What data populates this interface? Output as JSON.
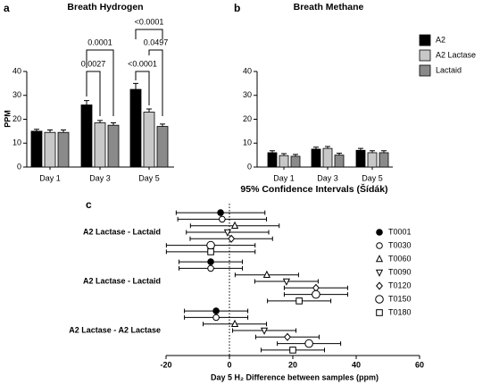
{
  "chart_data": [
    {
      "type": "bar",
      "panel": "a",
      "title": "Breath Hydrogen",
      "y_label": "PPM",
      "categories": [
        "Day 1",
        "Day 3",
        "Day 5"
      ],
      "series": [
        {
          "name": "A2",
          "color": "#000000",
          "values": [
            15,
            26,
            32.5
          ],
          "errors": [
            0.8,
            1.8,
            2.5
          ]
        },
        {
          "name": "A2 Lactase",
          "color": "#c8c8c8",
          "values": [
            14.5,
            18.5,
            23
          ],
          "errors": [
            1,
            1,
            1.3
          ]
        },
        {
          "name": "Lactaid",
          "color": "#8a8a8a",
          "values": [
            14.5,
            17.5,
            17
          ],
          "errors": [
            1,
            1,
            1
          ]
        }
      ],
      "annotations": [
        "0.0027",
        "0.0001",
        "<0.0001",
        "<0.0001",
        "0.0497"
      ],
      "ylim": [
        0,
        40
      ],
      "yticks": [
        0,
        10,
        20,
        30,
        40
      ],
      "legend": "right"
    },
    {
      "type": "bar",
      "panel": "b",
      "title": "Breath Methane",
      "categories": [
        "Day 1",
        "Day 3",
        "Day 5"
      ],
      "series": [
        {
          "color": "#000000",
          "values": [
            6,
            7.5,
            7
          ],
          "errors": [
            0.8,
            0.8,
            0.8
          ]
        },
        {
          "color": "#c8c8c8",
          "values": [
            4.8,
            7.8,
            6
          ],
          "errors": [
            0.8,
            0.8,
            0.8
          ]
        },
        {
          "color": "#8a8a8a",
          "values": [
            4.5,
            5,
            6
          ],
          "errors": [
            0.8,
            0.8,
            0.8
          ]
        }
      ],
      "ylim": [
        0,
        40
      ],
      "yticks": [
        0,
        10,
        20,
        30,
        40
      ]
    },
    {
      "type": "forest",
      "panel": "c",
      "title": "95% Confidence Intervals (Šídák)",
      "x_label": "Day 5 H₂ Difference between samples (ppm)",
      "categories": [
        "A2 Lactase - Lactaid",
        "A2 Lactase - Lactaid",
        "A2 Lactase - A2 Lactase"
      ],
      "series": [
        {
          "name": "T0001",
          "marker": "circle-filled",
          "values": [
            -2.8,
            -5.9,
            -4.2
          ],
          "lower": [
            -16.8,
            -15.9,
            -14.2
          ],
          "upper": [
            11.2,
            4.1,
            5.8
          ]
        },
        {
          "name": "T0030",
          "marker": "circle",
          "values": [
            -2.3,
            -5.9,
            -4.2
          ],
          "lower": [
            -16.3,
            -15.9,
            -14.2
          ],
          "upper": [
            11.7,
            4.1,
            5.8
          ]
        },
        {
          "name": "T0060",
          "marker": "triangle",
          "values": [
            1.7,
            11.8,
            1.7
          ],
          "lower": [
            -12.3,
            1.8,
            -8.3
          ],
          "upper": [
            15.7,
            21.8,
            11.7
          ]
        },
        {
          "name": "T0090",
          "marker": "triangle-down",
          "values": [
            -0.6,
            18,
            11
          ],
          "lower": [
            -13.6,
            8,
            1
          ],
          "upper": [
            12.4,
            28,
            21
          ]
        },
        {
          "name": "T0120",
          "marker": "diamond",
          "values": [
            0.6,
            27.3,
            18.3
          ],
          "lower": [
            -12.4,
            17.3,
            8.3
          ],
          "upper": [
            13.6,
            37.3,
            28.3
          ]
        },
        {
          "name": "T0150",
          "marker": "circle-large",
          "values": [
            -5.9,
            27.3,
            25.1
          ],
          "lower": [
            -19.9,
            17.3,
            15.1
          ],
          "upper": [
            8.1,
            37.3,
            35.1
          ]
        },
        {
          "name": "T0180",
          "marker": "square",
          "values": [
            -5.9,
            22,
            20
          ],
          "lower": [
            -19.9,
            12,
            10
          ],
          "upper": [
            8.1,
            32,
            30
          ]
        }
      ],
      "reference_x": 0,
      "xlim": [
        -20,
        60
      ],
      "xticks": [
        -20,
        0,
        20,
        40,
        60
      ]
    }
  ]
}
